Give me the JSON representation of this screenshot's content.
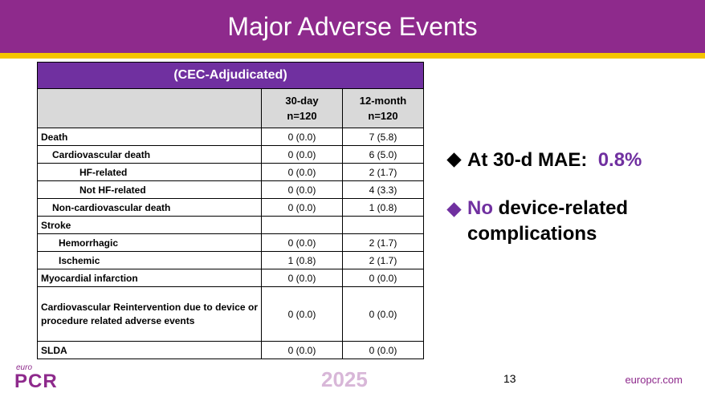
{
  "title": "Major Adverse Events",
  "table": {
    "caption": "(CEC-Adjudicated)",
    "col1": {
      "line1": "30-day",
      "line2": "n=120"
    },
    "col2": {
      "line1": "12-month",
      "line2": "n=120"
    },
    "rows": [
      {
        "label": "Death",
        "d30": "0 (0.0)",
        "m12": "7 (5.8)"
      },
      {
        "label": "Cardiovascular death",
        "d30": "0 (0.0)",
        "m12": "6 (5.0)"
      },
      {
        "label": "HF-related",
        "d30": "0 (0.0)",
        "m12": "2 (1.7)"
      },
      {
        "label": "Not HF-related",
        "d30": "0 (0.0)",
        "m12": "4 (3.3)"
      },
      {
        "label": "Non-cardiovascular death",
        "d30": "0 (0.0)",
        "m12": "1 (0.8)"
      },
      {
        "label": "Stroke",
        "d30": "",
        "m12": ""
      },
      {
        "label": "Hemorrhagic",
        "d30": "0 (0.0)",
        "m12": "2 (1.7)"
      },
      {
        "label": "Ischemic",
        "d30": "1 (0.8)",
        "m12": "2 (1.7)"
      },
      {
        "label": "Myocardial infarction",
        "d30": "0 (0.0)",
        "m12": "0 (0.0)"
      },
      {
        "label": "Cardiovascular Reintervention due to device or procedure related adverse events",
        "d30": "0 (0.0)",
        "m12": "0 (0.0)"
      },
      {
        "label": "SLDA",
        "d30": "0 (0.0)",
        "m12": "0 (0.0)"
      }
    ]
  },
  "bullets": {
    "b1_text": "At 30-d MAE:",
    "b1_value": "0.8%",
    "b2_highlight": "No",
    "b2_text": "device-related complications"
  },
  "footer": {
    "logo_top": "euro",
    "logo_main": "PCR",
    "year": "2025",
    "page_number": "13",
    "website": "europcr.com"
  },
  "colors": {
    "banner": "#8e2a8c",
    "accent_bar": "#f5c400",
    "table_header": "#7030a0",
    "bullet_black": "#000000",
    "bullet_purple": "#7030a0"
  },
  "icons": {
    "bullet_1": "diamond-bullet-icon",
    "bullet_2": "diamond-bullet-icon"
  }
}
